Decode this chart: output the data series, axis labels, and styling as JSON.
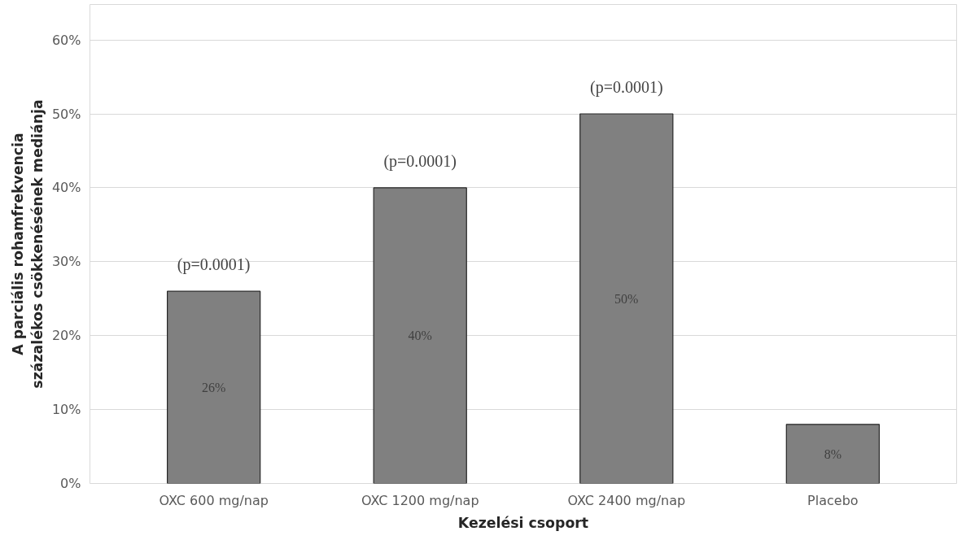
{
  "chart_data": {
    "type": "bar",
    "categories": [
      "OXC 600 mg/nap",
      "OXC 1200 mg/nap",
      "OXC 2400 mg/nap",
      "Placebo"
    ],
    "values": [
      26,
      40,
      50,
      8
    ],
    "value_labels": [
      "26%",
      "40%",
      "50%",
      "8%"
    ],
    "color": "#808080",
    "xlabel": "Kezelési csoport",
    "ylabel": "A parciális rohamfrekvencia\nszázalékos csökkenésének mediánja",
    "ylim": [
      0,
      60
    ],
    "yticks": [
      {
        "value": 0,
        "label": "0%"
      },
      {
        "value": 10,
        "label": "10%"
      },
      {
        "value": 20,
        "label": "20%"
      },
      {
        "value": 30,
        "label": "30%"
      },
      {
        "value": 40,
        "label": "40%"
      },
      {
        "value": 50,
        "label": "50%"
      },
      {
        "value": 60,
        "label": "60%"
      }
    ],
    "grid": "y",
    "annotations": [
      {
        "text": "(p=0.0001)",
        "x": "OXC 600 mg/nap",
        "y": 26
      },
      {
        "text": "(p=0.0001)",
        "x": "OXC 1200 mg/nap",
        "y": 40
      },
      {
        "text": "(p=0.0001)",
        "x": "OXC 2400 mg/nap",
        "y": 50
      }
    ]
  }
}
